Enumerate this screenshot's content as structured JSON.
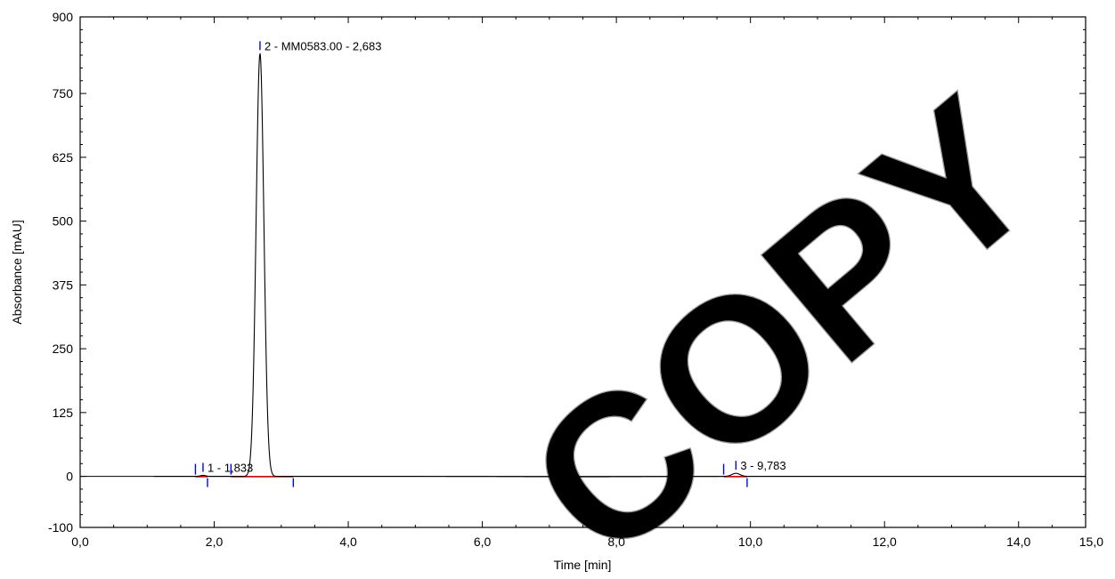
{
  "chart_data": {
    "type": "line",
    "title": "",
    "xlabel": "Time [min]",
    "ylabel": "Absorbance [mAU]",
    "xlim": [
      0,
      15
    ],
    "ylim": [
      -100,
      900
    ],
    "x_ticks": [
      0,
      2,
      4,
      6,
      8,
      10,
      12,
      14,
      15
    ],
    "x_tick_labels": [
      "0,0",
      "2,0",
      "4,0",
      "6,0",
      "8,0",
      "10,0",
      "12,0",
      "14,0",
      "15,0"
    ],
    "y_ticks": [
      -100,
      0,
      125,
      250,
      375,
      500,
      625,
      750,
      900
    ],
    "y_tick_labels": [
      "-100",
      "0",
      "125",
      "250",
      "375",
      "500",
      "625",
      "750",
      "900"
    ],
    "grid": false,
    "series": [
      {
        "color": "#000000",
        "baseline": 0,
        "peaks": [
          {
            "rt": 1.833,
            "height": 2,
            "sigma": 0.04
          },
          {
            "rt": 2.683,
            "height": 828,
            "sigma": 0.058
          },
          {
            "rt": 9.783,
            "height": 6,
            "sigma": 0.06
          }
        ]
      }
    ],
    "integration_color": "#ff0000",
    "marker_color": "#0000ff",
    "peak_annotations": [
      {
        "label": "1 - 1,833",
        "rt": 1.833,
        "start": 1.72,
        "end": 1.9,
        "apex_height": 2
      },
      {
        "label": "2 - MM0583.00 - 2,683",
        "rt": 2.683,
        "start": 2.25,
        "end": 3.18,
        "apex_height": 828
      },
      {
        "label": "3 - 9,783",
        "rt": 9.783,
        "start": 9.6,
        "end": 9.95,
        "apex_height": 6
      }
    ],
    "watermark": "COPY"
  }
}
